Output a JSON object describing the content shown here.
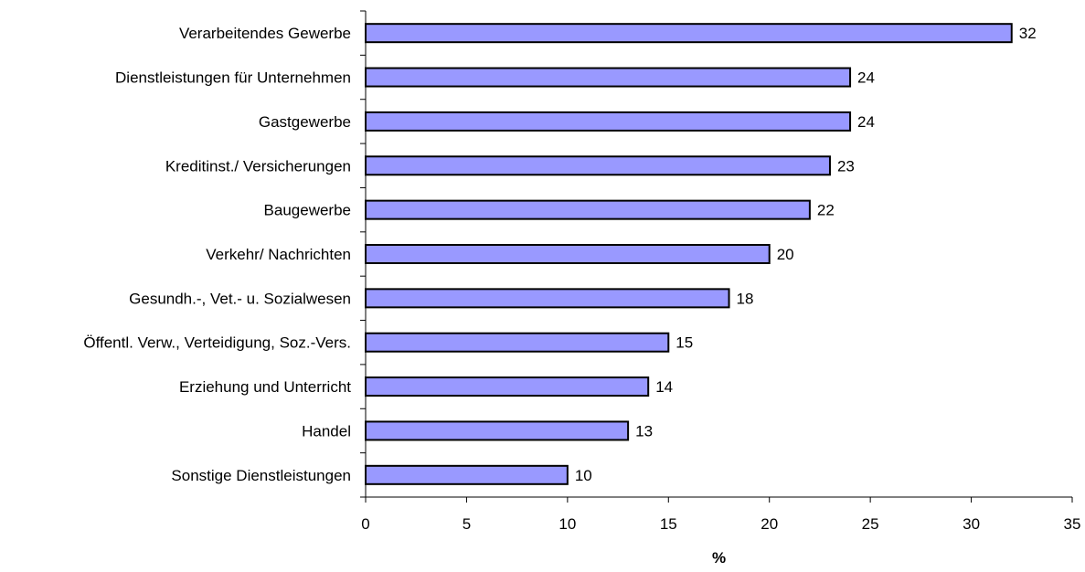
{
  "chart_data": {
    "type": "bar",
    "orientation": "horizontal",
    "title": "",
    "xlabel": "%",
    "ylabel": "",
    "xlim": [
      0,
      35
    ],
    "xticks": [
      0,
      5,
      10,
      15,
      20,
      25,
      30,
      35
    ],
    "grid": false,
    "legend": "none",
    "bar_color": "#9999ff",
    "bar_outline_color": "#000000",
    "categories": [
      "Verarbeitendes Gewerbe",
      "Dienstleistungen für Unternehmen",
      "Gastgewerbe",
      "Kreditinst./ Versicherungen",
      "Baugewerbe",
      "Verkehr/ Nachrichten",
      "Gesundh.-, Vet.- u. Sozialwesen",
      "Öffentl. Verw., Verteidigung, Soz.-Vers.",
      "Erziehung und Unterricht",
      "Handel",
      "Sonstige Dienstleistungen"
    ],
    "values": [
      32,
      24,
      24,
      23,
      22,
      20,
      18,
      15,
      14,
      13,
      10
    ],
    "data_labels": [
      "32",
      "24",
      "24",
      "23",
      "22",
      "20",
      "18",
      "15",
      "14",
      "13",
      "10"
    ]
  }
}
